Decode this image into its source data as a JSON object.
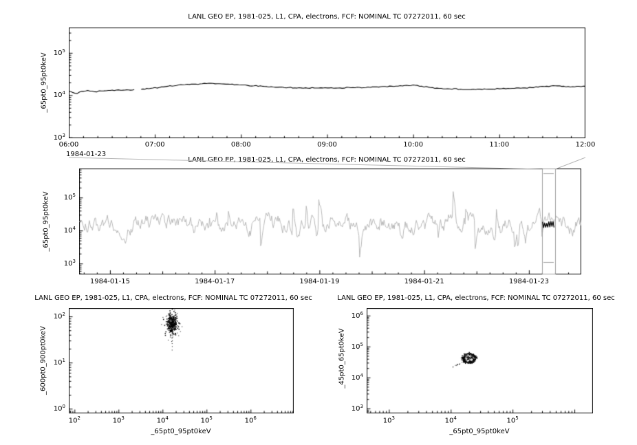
{
  "colors": {
    "background": "#ffffff",
    "axis": "#000000",
    "series_primary": "#000000",
    "series_context": "#b7b7b7",
    "selection_box": "#9e9e9e",
    "connector": "#b4b4b4"
  },
  "chart_data": [
    {
      "id": "top-timeseries",
      "type": "line",
      "title": "LANL GEO EP, 1981-025, L1, CPA, electrons, FCF: NOMINAL TC 07272011, 60 sec",
      "ylabel": "_65pt0_95pt0keV",
      "x_axis": {
        "kind": "time-of-day",
        "date_label": "1984-01-23",
        "range_hours": [
          6,
          12
        ],
        "tick_hours": [
          6,
          7,
          8,
          9,
          10,
          11,
          12
        ],
        "tick_labels": [
          "06:00",
          "07:00",
          "08:00",
          "09:00",
          "10:00",
          "11:00",
          "12:00"
        ]
      },
      "y_axis": {
        "kind": "log10",
        "range_log10": [
          2.98,
          5.6
        ],
        "tick_exponents": [
          3,
          4,
          5
        ]
      },
      "grid": false,
      "legend": false,
      "series": {
        "color": "#000000",
        "points": [
          [
            6.0,
            4.09
          ],
          [
            6.05,
            4.06
          ],
          [
            6.1,
            4.04
          ],
          [
            6.15,
            4.09
          ],
          [
            6.22,
            4.11
          ],
          [
            6.3,
            4.08
          ],
          [
            6.38,
            4.1
          ],
          [
            6.46,
            4.11
          ],
          [
            6.55,
            4.12
          ],
          [
            6.65,
            4.12
          ],
          [
            6.76,
            4.13
          ],
          null,
          [
            6.84,
            4.14
          ],
          [
            6.95,
            4.16
          ],
          [
            7.05,
            4.18
          ],
          [
            7.15,
            4.21
          ],
          [
            7.25,
            4.23
          ],
          [
            7.35,
            4.25
          ],
          [
            7.45,
            4.26
          ],
          [
            7.55,
            4.27
          ],
          [
            7.65,
            4.28
          ],
          [
            7.75,
            4.27
          ],
          [
            7.85,
            4.26
          ],
          [
            7.95,
            4.25
          ],
          [
            8.05,
            4.24
          ],
          [
            8.15,
            4.22
          ],
          [
            8.25,
            4.21
          ],
          [
            8.35,
            4.2
          ],
          [
            8.45,
            4.19
          ],
          [
            8.55,
            4.18
          ],
          [
            8.7,
            4.17
          ],
          [
            8.85,
            4.17
          ],
          [
            9.0,
            4.17
          ],
          [
            9.15,
            4.17
          ],
          [
            9.3,
            4.18
          ],
          [
            9.45,
            4.18
          ],
          [
            9.6,
            4.19
          ],
          [
            9.75,
            4.21
          ],
          [
            9.9,
            4.23
          ],
          [
            10.0,
            4.24
          ],
          [
            10.1,
            4.21
          ],
          [
            10.2,
            4.18
          ],
          [
            10.3,
            4.16
          ],
          [
            10.4,
            4.15
          ],
          [
            10.55,
            4.14
          ],
          [
            10.7,
            4.14
          ],
          [
            10.85,
            4.14
          ],
          [
            11.0,
            4.15
          ],
          [
            11.15,
            4.16
          ],
          [
            11.3,
            4.17
          ],
          [
            11.45,
            4.19
          ],
          [
            11.55,
            4.21
          ],
          [
            11.65,
            4.22
          ],
          [
            11.75,
            4.21
          ],
          [
            11.85,
            4.2
          ],
          [
            11.95,
            4.2
          ],
          [
            12.0,
            4.21
          ]
        ]
      }
    },
    {
      "id": "context-timeseries",
      "type": "line",
      "title": "LANL GEO EP, 1981-025, L1, CPA, electrons, FCF: NOMINAL TC 07272011, 60 sec",
      "ylabel": "_65pt0_95pt0keV",
      "x_axis": {
        "kind": "date",
        "range_days": [
          14.41,
          24.0
        ],
        "tick_days": [
          15,
          17,
          19,
          21,
          23
        ],
        "tick_labels": [
          "1984-01-15",
          "1984-01-17",
          "1984-01-19",
          "1984-01-21",
          "1984-01-23"
        ]
      },
      "y_axis": {
        "kind": "log10",
        "range_log10": [
          2.67,
          5.88
        ],
        "tick_exponents": [
          3,
          4,
          5
        ]
      },
      "grid": false,
      "legend": false,
      "series": {
        "color": "#b7b7b7",
        "typical_log10": 4.2,
        "range_log10": [
          2.9,
          5.4
        ],
        "noise_spec": {
          "seed": 20,
          "n": 640,
          "base_log10": 4.18,
          "smooth": 0.82,
          "amp": 0.34,
          "spike_prob": 0.05,
          "spike_skew": 0.45,
          "spike_mag": 1.1
        }
      },
      "highlight": {
        "color": "#000000",
        "range_days": [
          23.26,
          23.49
        ],
        "base_log10": 4.18,
        "zigzag_amp": 0.07,
        "zigzag_step_days": 0.02
      },
      "selection_box": {
        "range_days": [
          23.25,
          23.5
        ],
        "color": "#9e9e9e"
      }
    },
    {
      "id": "scatter-600-900",
      "type": "scatter",
      "title": "LANL GEO EP, 1981-025, L1, CPA, electrons, FCF: NOMINAL TC 07272011, 60 sec",
      "xlabel": "_65pt0_95pt0keV",
      "ylabel": "_600pt0_900pt0keV",
      "x_axis": {
        "kind": "log10",
        "range_log10": [
          1.87,
          6.98
        ],
        "tick_exponents": [
          2,
          3,
          4,
          5,
          6
        ]
      },
      "y_axis": {
        "kind": "log10",
        "range_log10": [
          -0.1,
          2.18
        ],
        "tick_exponents": [
          0,
          1,
          2
        ]
      },
      "grid": false,
      "legend": false,
      "cluster": {
        "seed": 31,
        "center_log10": [
          4.22,
          1.85
        ],
        "sigma_log10": [
          0.06,
          0.11
        ],
        "n": 260,
        "fringe": {
          "n": 45,
          "sigma_scale": 2.2
        },
        "tail": {
          "n": 14,
          "x_center": 4.21,
          "x_sigma": 0.035,
          "y_from": 1.45,
          "y_to": 1.78
        }
      }
    },
    {
      "id": "scatter-45-65",
      "type": "scatter",
      "title": "LANL GEO EP, 1981-025, L1, CPA, electrons, FCF: NOMINAL TC 07272011, 60 sec",
      "xlabel": "_65pt0_95pt0keV",
      "ylabel": "_45pt0_65pt0keV",
      "x_axis": {
        "kind": "log10",
        "range_log10": [
          2.64,
          6.3
        ],
        "tick_exponents": [
          3,
          4,
          5
        ]
      },
      "y_axis": {
        "kind": "log10",
        "range_log10": [
          2.84,
          6.24
        ],
        "tick_exponents": [
          3,
          4,
          5,
          6
        ]
      },
      "grid": false,
      "legend": false,
      "loop": {
        "seed": 17,
        "center_log10": [
          4.3,
          4.62
        ],
        "radius_log10": [
          0.1,
          0.15
        ],
        "outline_n": 70,
        "dots_n": 90,
        "inner_n": 50,
        "inner_sigma": [
          0.05,
          0.08
        ],
        "trail": {
          "n": 12,
          "from": [
            4.0,
            4.3
          ],
          "to": [
            4.22,
            4.52
          ],
          "jitter": 0.03
        }
      }
    }
  ]
}
